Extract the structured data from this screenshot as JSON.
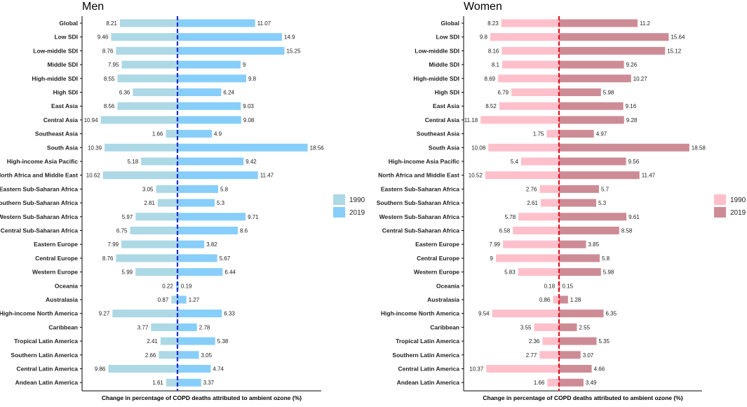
{
  "chart_data": [
    {
      "type": "bar",
      "subtype": "diverging-horizontal-bar",
      "title": "Men",
      "xlabel": "Change in percentage of COPD deaths attributed to ambient ozone (%)",
      "ylabel": "",
      "center_line_color": "#1f2fd0",
      "categories": [
        "Global",
        "Low SDI",
        "Low-middle SDI",
        "Middle SDI",
        "High-middle SDI",
        "High SDI",
        "East Asia",
        "Central Asia",
        "Southeast Asia",
        "South Asia",
        "High-income Asia Pacific",
        "North Africa and Middle East",
        "Eastern Sub-Saharan Africa",
        "Southern Sub-Saharan Africa",
        "Western Sub-Saharan Africa",
        "Central Sub-Saharan Africa",
        "Eastern Europe",
        "Central Europe",
        "Western Europe",
        "Oceania",
        "Australasia",
        "High-income North America",
        "Caribbean",
        "Tropical Latin America",
        "Southern Latin America",
        "Central Latin America",
        "Andean Latin America"
      ],
      "series": [
        {
          "name": "1990",
          "direction": "left",
          "color": "#add8e6",
          "values": [
            8.21,
            9.46,
            8.76,
            7.95,
            8.55,
            6.36,
            8.56,
            10.94,
            1.66,
            10.39,
            5.18,
            10.62,
            3.05,
            2.81,
            5.97,
            6.75,
            7.99,
            8.76,
            5.99,
            0.22,
            0.87,
            9.27,
            3.77,
            2.41,
            2.66,
            9.86,
            1.61
          ]
        },
        {
          "name": "2019",
          "direction": "right",
          "color": "#87cefa",
          "values": [
            11.07,
            14.9,
            15.25,
            9,
            9.8,
            6.24,
            9.03,
            9.08,
            4.9,
            18.56,
            9.42,
            11.47,
            5.8,
            5.3,
            9.71,
            8.6,
            3.82,
            5.67,
            6.44,
            0.19,
            1.27,
            6.33,
            2.78,
            5.38,
            3.05,
            4.74,
            3.37
          ]
        }
      ],
      "legend": {
        "position": "right",
        "entries": [
          "1990",
          "2019"
        ]
      }
    },
    {
      "type": "bar",
      "subtype": "diverging-horizontal-bar",
      "title": "Women",
      "xlabel": "Change in percentage of COPD deaths attributed to ambient ozone (%)",
      "ylabel": "",
      "center_line_color": "#e8141e",
      "categories": [
        "Global",
        "Low SDI",
        "Low-middle SDI",
        "Middle SDI",
        "High-middle SDI",
        "High SDI",
        "East Asia",
        "Central Asia",
        "Southeast Asia",
        "South Asia",
        "High-income Asia Pacific",
        "North Africa and Middle East",
        "Eastern Sub-Saharan Africa",
        "Southern Sub-Saharan Africa",
        "Western Sub-Saharan Africa",
        "Central Sub-Saharan Africa",
        "Eastern Europe",
        "Central Europe",
        "Western Europe",
        "Oceania",
        "Australasia",
        "High-income North America",
        "Caribbean",
        "Tropical Latin America",
        "Southern Latin America",
        "Central Latin America",
        "Andean Latin America"
      ],
      "series": [
        {
          "name": "1990",
          "direction": "left",
          "color": "#ffc0cb",
          "values": [
            8.23,
            9.8,
            8.16,
            8.1,
            8.69,
            6.79,
            8.52,
            11.18,
            1.75,
            10.08,
            5.4,
            10.52,
            2.76,
            2.61,
            5.78,
            6.58,
            7.99,
            9,
            5.83,
            0.18,
            0.86,
            9.54,
            3.55,
            2.36,
            2.77,
            10.37,
            1.66
          ]
        },
        {
          "name": "2019",
          "direction": "right",
          "color": "#cd8c95",
          "values": [
            11.2,
            15.64,
            15.12,
            9.26,
            10.27,
            5.98,
            9.16,
            9.28,
            4.97,
            18.58,
            9.56,
            11.47,
            5.7,
            5.3,
            9.61,
            8.58,
            3.85,
            5.8,
            5.98,
            0.15,
            1.28,
            6.35,
            2.55,
            5.35,
            3.07,
            4.66,
            3.49
          ]
        }
      ],
      "legend": {
        "position": "right",
        "entries": [
          "1990",
          "2019"
        ]
      }
    }
  ]
}
